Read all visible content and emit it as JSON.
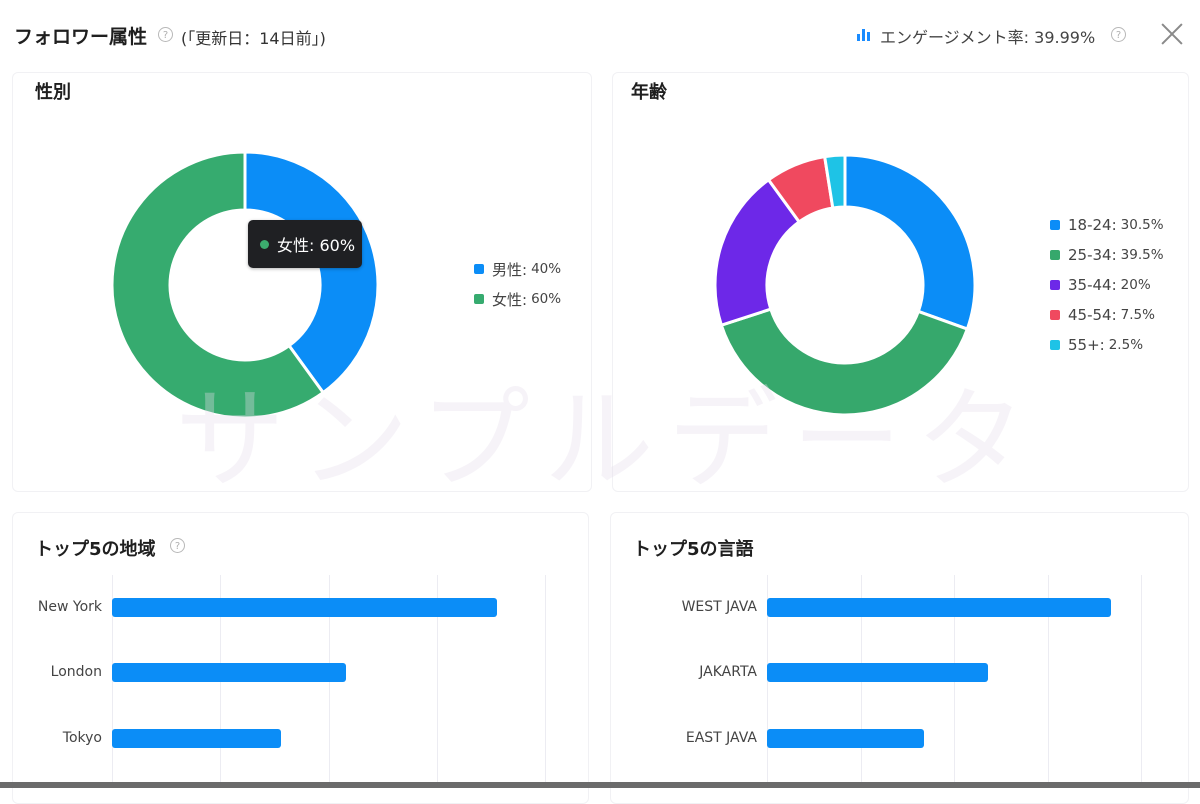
{
  "header": {
    "title": "フォロワー属性",
    "updated": "(｢更新日：14日前｣)",
    "engagement": "エンゲージメント率: 39.99%"
  },
  "watermark": "サンプルデータ",
  "gender": {
    "title": "性別",
    "tooltip": "女性: 60%",
    "legend": [
      {
        "label": "男性:",
        "value": "40%",
        "color": "#0b8df7"
      },
      {
        "label": "女性:",
        "value": "60%",
        "color": "#36ab6f"
      }
    ],
    "chart_data": {
      "type": "pie",
      "categories": [
        "男性",
        "女性"
      ],
      "values": [
        40,
        60
      ],
      "colors": [
        "#0b8df7",
        "#36ab6f"
      ]
    }
  },
  "age": {
    "title": "年齢",
    "legend": [
      {
        "label": "18-24:",
        "value": "30.5%",
        "color": "#0b8df7"
      },
      {
        "label": "25-34:",
        "value": "39.5%",
        "color": "#36a86c"
      },
      {
        "label": "35-44:",
        "value": "20%",
        "color": "#6d28e8"
      },
      {
        "label": "45-54:",
        "value": "7.5%",
        "color": "#f0495f"
      },
      {
        "label": "55+:",
        "value": "2.5%",
        "color": "#1ec3e6"
      }
    ],
    "chart_data": {
      "type": "pie",
      "categories": [
        "18-24",
        "25-34",
        "35-44",
        "45-54",
        "55+"
      ],
      "values": [
        30.5,
        39.5,
        20,
        7.5,
        2.5
      ],
      "colors": [
        "#0b8df7",
        "#36a86c",
        "#6d28e8",
        "#f0495f",
        "#1ec3e6"
      ]
    }
  },
  "regions": {
    "title": "トップ5の地域",
    "chart_data": {
      "type": "bar",
      "orientation": "horizontal",
      "categories": [
        "New York",
        "London",
        "Tokyo"
      ],
      "values": [
        89,
        54,
        39
      ],
      "xlim": [
        0,
        100
      ]
    }
  },
  "languages": {
    "title": "トップ5の言語",
    "chart_data": {
      "type": "bar",
      "orientation": "horizontal",
      "categories": [
        "WEST JAVA",
        "JAKARTA",
        "EAST JAVA"
      ],
      "values": [
        92,
        59,
        42
      ],
      "xlim": [
        0,
        100
      ]
    }
  }
}
